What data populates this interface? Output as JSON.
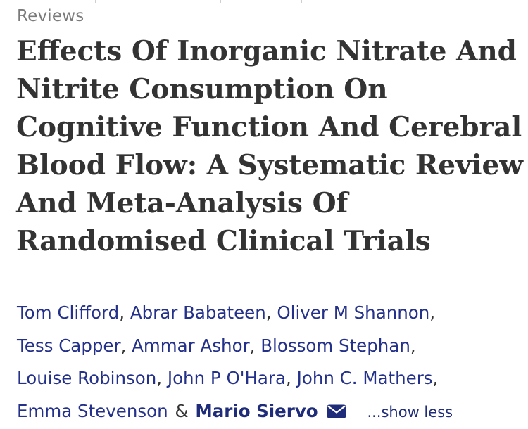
{
  "section_label": "Reviews",
  "title": "Effects Of Inorganic Nitrate And Nitrite Consumption On Cognitive Function And Cerebral Blood Flow: A Systematic Review And Meta-Analysis Of Randomised Clinical Trials",
  "authors": {
    "list": [
      "Tom Clifford",
      "Abrar Babateen",
      "Oliver M Shannon",
      "Tess Capper",
      "Ammar Ashor",
      "Blossom Stephan",
      "Louise Robinson",
      "John P O'Hara",
      "John C. Mathers",
      "Emma Stevenson"
    ],
    "separator": ",",
    "ampersand": "&",
    "corresponding": "Mario Siervo",
    "mail_icon": "envelope-icon",
    "toggle_label": "...show less"
  },
  "colors": {
    "author_link": "#24318a",
    "title_text": "#333333",
    "section_label": "#7a7a7a"
  }
}
